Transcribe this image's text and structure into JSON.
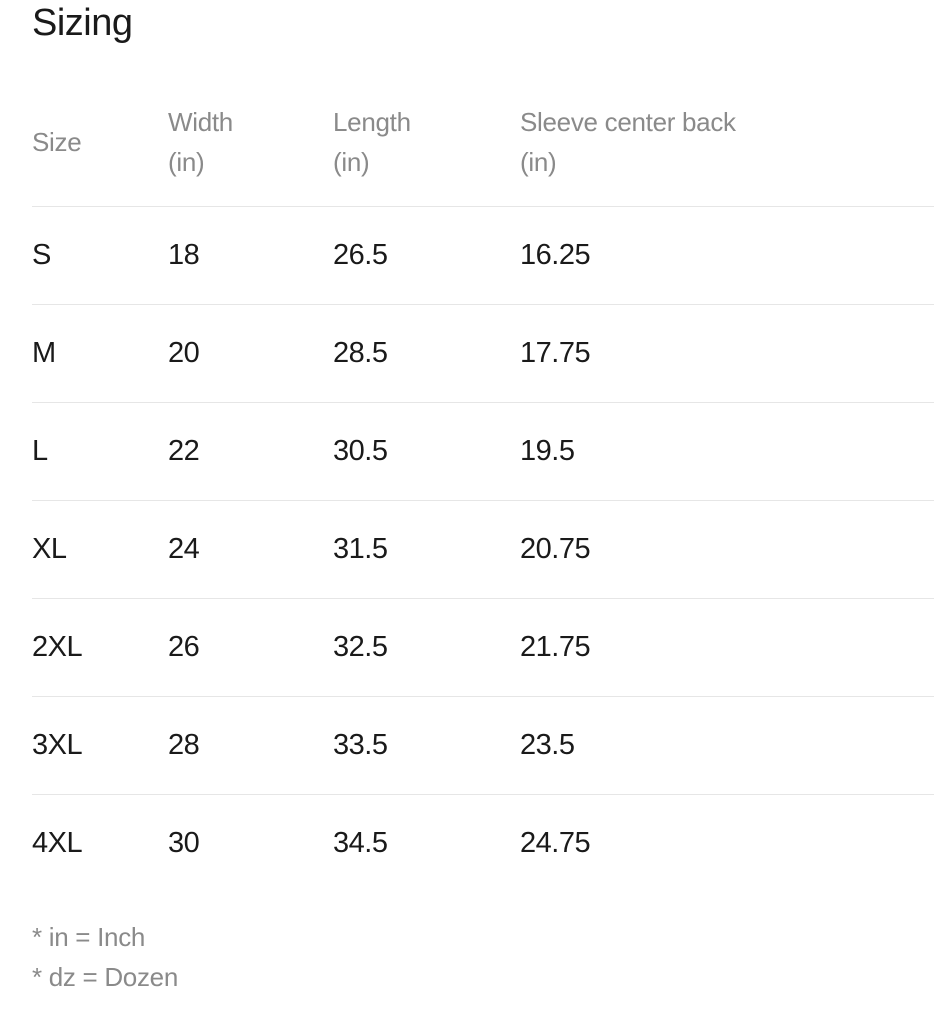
{
  "title": "Sizing",
  "table": {
    "headers": [
      {
        "line1": "Size",
        "line2": ""
      },
      {
        "line1": "Width",
        "line2": "(in)"
      },
      {
        "line1": "Length",
        "line2": "(in)"
      },
      {
        "line1": "Sleeve center back",
        "line2": "(in)"
      }
    ],
    "rows": [
      [
        "S",
        "18",
        "26.5",
        "16.25"
      ],
      [
        "M",
        "20",
        "28.5",
        "17.75"
      ],
      [
        "L",
        "22",
        "30.5",
        "19.5"
      ],
      [
        "XL",
        "24",
        "31.5",
        "20.75"
      ],
      [
        "2XL",
        "26",
        "32.5",
        "21.75"
      ],
      [
        "3XL",
        "28",
        "33.5",
        "23.5"
      ],
      [
        "4XL",
        "30",
        "34.5",
        "24.75"
      ]
    ]
  },
  "notes": [
    "* in = Inch",
    "* dz = Dozen"
  ]
}
